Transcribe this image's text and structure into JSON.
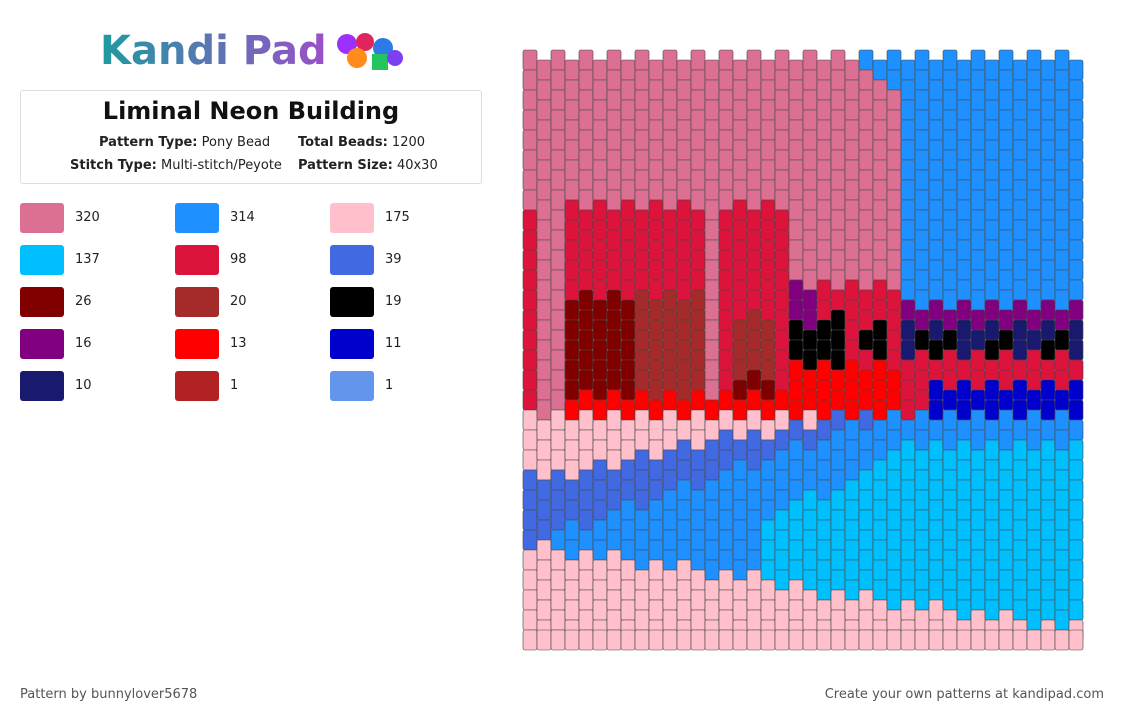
{
  "logo": "Kandi Pad",
  "title": "Liminal Neon Building",
  "info": [
    {
      "label": "Pattern Type:",
      "value": "Pony Bead"
    },
    {
      "label": "Total Beads:",
      "value": "1200"
    },
    {
      "label": "Stitch Type:",
      "value": "Multi-stitch/Peyote"
    },
    {
      "label": "Pattern Size:",
      "value": "40x30"
    }
  ],
  "palette": [
    {
      "color": "#DB7093",
      "count": 320
    },
    {
      "color": "#1E90FF",
      "count": 314
    },
    {
      "color": "#FFC0CB",
      "count": 175
    },
    {
      "color": "#00BFFF",
      "count": 137
    },
    {
      "color": "#DC143C",
      "count": 98
    },
    {
      "color": "#4169E1",
      "count": 39
    },
    {
      "color": "#800000",
      "count": 26
    },
    {
      "color": "#A52A2A",
      "count": 20
    },
    {
      "color": "#000000",
      "count": 19
    },
    {
      "color": "#800080",
      "count": 16
    },
    {
      "color": "#FF0000",
      "count": 13
    },
    {
      "color": "#0000CD",
      "count": 11
    },
    {
      "color": "#191970",
      "count": 10
    },
    {
      "color": "#B22222",
      "count": 1
    },
    {
      "color": "#6495ED",
      "count": 1
    }
  ],
  "footer": {
    "credit": "Pattern by bunnylover5678",
    "link": "Create your own patterns at kandipad.com"
  }
}
